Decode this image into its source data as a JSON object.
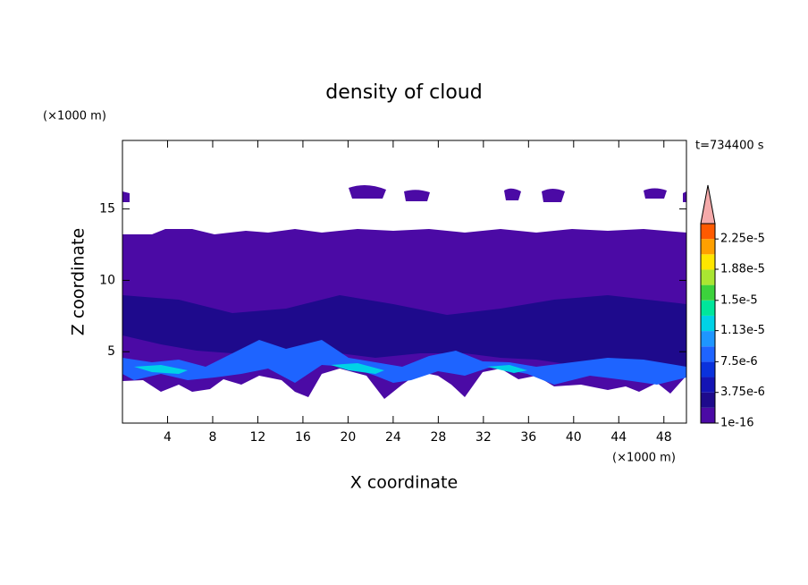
{
  "chart_data": {
    "type": "contour",
    "title": "density of cloud",
    "x_label": "X coordinate",
    "y_label": "Z coordinate",
    "x_unit": "(×1000 m)",
    "y_unit": "(×1000 m)",
    "annotation": "t=734400 s",
    "xlim": [
      0,
      50
    ],
    "xticks": [
      4,
      8,
      12,
      16,
      20,
      24,
      28,
      32,
      36,
      40,
      44,
      48
    ],
    "ylim": [
      0,
      19.8
    ],
    "yticks": [
      5,
      10,
      15
    ],
    "clim": [
      1e-16,
      2.4375e-05
    ],
    "colorbar": {
      "ticks": [
        {
          "value": 1e-16,
          "label": "1e-16"
        },
        {
          "value": 3.75e-06,
          "label": "3.75e-6"
        },
        {
          "value": 7.5e-06,
          "label": "7.5e-6"
        },
        {
          "value": 1.13e-05,
          "label": "1.13e-5"
        },
        {
          "value": 1.5e-05,
          "label": "1.5e-5"
        },
        {
          "value": 1.88e-05,
          "label": "1.88e-5"
        },
        {
          "value": 2.25e-05,
          "label": "2.25e-5"
        }
      ],
      "colors": [
        "#4b0aa5",
        "#1e0a8c",
        "#1414b4",
        "#0a32dc",
        "#1e64ff",
        "#1e96ff",
        "#00d2e6",
        "#00e69b",
        "#3cd23c",
        "#aae632",
        "#ffe600",
        "#ffa000",
        "#ff5a00"
      ],
      "extend_color": "#f5aaaa"
    }
  }
}
